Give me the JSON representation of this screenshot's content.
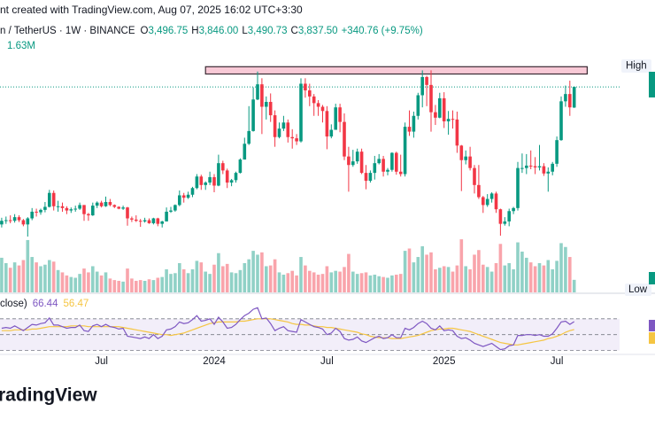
{
  "chart_data": {
    "type": "candlestick",
    "title": "nt created with TradingView.com, Aug 07, 2025 16:02 UTC+3:30",
    "symbol": "n / TetherUS · 1W · BINANCE",
    "ohlc_legend": [
      {
        "key": "O",
        "text": "3,496.75"
      },
      {
        "key": "H",
        "text": "3,846.00"
      },
      {
        "key": "L",
        "text": "3,490.73"
      },
      {
        "key": "C",
        "text": "3,837.50"
      }
    ],
    "change_text": "+340.76 (+9.75%)",
    "volume_text": "1.63M",
    "rsi_title": "close)",
    "rsi_text": "66.44",
    "rsi_ma_text": "56.47",
    "price_axis_labels": [
      "High",
      "Low"
    ],
    "brand": "radingView",
    "colors": {
      "up": "#089981",
      "down": "#f23645",
      "rsi": "#7e57c2",
      "rsi_ma": "#f5c542"
    },
    "open": [
      1570,
      1630,
      1640,
      1630,
      1690,
      1640,
      1570,
      1670,
      1780,
      1770,
      1810,
      1860,
      2090,
      1870,
      1870,
      1840,
      1800,
      1820,
      1830,
      1890,
      1740,
      1720,
      1880,
      1930,
      1870,
      1940,
      1890,
      1860,
      1830,
      1850,
      1670,
      1650,
      1630,
      1620,
      1640,
      1590,
      1670,
      1580,
      1620,
      1780,
      1800,
      1890,
      2050,
      2010,
      2060,
      2170,
      2360,
      2220,
      2260,
      2350,
      2210,
      2580,
      2460,
      2260,
      2300,
      2420,
      2640,
      2900,
      3110,
      3630,
      3880,
      3510,
      3590,
      3370,
      3010,
      3150,
      3250,
      3010,
      2990,
      2940,
      3890,
      3780,
      3680,
      3570,
      3510,
      3440,
      3020,
      3130,
      3500,
      3260,
      2690,
      2550,
      2610,
      2770,
      2420,
      2290,
      2420,
      2580,
      2650,
      2440,
      2470,
      2750,
      2440,
      2400,
      3180,
      3100,
      3360,
      3700,
      4000,
      3870,
      3420,
      3330,
      3650,
      3270,
      3310,
      3300,
      2870,
      2630,
      2690,
      2500,
      2220,
      2020,
      1890,
      1990,
      2080,
      1820,
      1580,
      1620,
      1790,
      1840,
      2500,
      2500,
      2540,
      2530,
      2510,
      2530,
      2410,
      2440,
      2570,
      2960,
      3600,
      3720,
      3496.75
    ],
    "high": [
      1680,
      1700,
      1720,
      1740,
      1720,
      1660,
      1690,
      1840,
      1830,
      1830,
      1940,
      2140,
      2130,
      1960,
      1930,
      1870,
      1850,
      1880,
      1930,
      1890,
      1760,
      1930,
      1950,
      1960,
      2030,
      1990,
      1900,
      1870,
      1880,
      1860,
      1700,
      1720,
      1660,
      1680,
      1670,
      1680,
      1680,
      1630,
      1850,
      1860,
      1900,
      2130,
      2090,
      2110,
      2190,
      2400,
      2390,
      2280,
      2440,
      2400,
      2720,
      2620,
      2490,
      2320,
      2440,
      2660,
      3000,
      3520,
      3830,
      4090,
      3980,
      3680,
      3730,
      3450,
      3250,
      3360,
      3300,
      3140,
      3060,
      3980,
      3980,
      3890,
      3720,
      3620,
      3540,
      3520,
      3220,
      3560,
      3560,
      3400,
      2850,
      2800,
      2820,
      2820,
      2550,
      2460,
      2700,
      2730,
      2700,
      2500,
      2760,
      2770,
      2720,
      3250,
      3450,
      3430,
      3740,
      4110,
      4020,
      4110,
      3540,
      3740,
      3750,
      3440,
      3450,
      3430,
      2880,
      2790,
      2850,
      2550,
      2550,
      2040,
      2070,
      2100,
      2110,
      1830,
      1690,
      1830,
      1860,
      2600,
      2740,
      2730,
      2790,
      2680,
      2880,
      2580,
      2510,
      2600,
      3020,
      3680,
      3860,
      3940,
      3846
    ],
    "low": [
      1520,
      1580,
      1590,
      1600,
      1610,
      1540,
      1370,
      1640,
      1700,
      1730,
      1770,
      1850,
      1800,
      1780,
      1780,
      1740,
      1760,
      1780,
      1810,
      1630,
      1630,
      1710,
      1840,
      1850,
      1860,
      1870,
      1840,
      1820,
      1810,
      1550,
      1610,
      1610,
      1530,
      1600,
      1580,
      1570,
      1540,
      1520,
      1620,
      1760,
      1780,
      1870,
      1930,
      1990,
      2020,
      2150,
      2140,
      2140,
      2220,
      2100,
      2200,
      2400,
      2170,
      2200,
      2260,
      2410,
      2640,
      2880,
      3100,
      3620,
      3060,
      3300,
      3260,
      2850,
      2990,
      3110,
      2920,
      2820,
      2880,
      2920,
      3660,
      3520,
      3360,
      3360,
      3250,
      2810,
      2990,
      3130,
      3090,
      2630,
      2110,
      2520,
      2570,
      2400,
      2150,
      2260,
      2310,
      2560,
      2360,
      2380,
      2440,
      2390,
      2360,
      2360,
      3030,
      3000,
      3300,
      3500,
      3520,
      3100,
      3210,
      3320,
      3160,
      3050,
      3150,
      2750,
      2120,
      2560,
      2460,
      2080,
      1990,
      1760,
      1860,
      1930,
      1760,
      1385,
      1550,
      1540,
      1740,
      1800,
      2420,
      2400,
      2480,
      2400,
      2460,
      2370,
      2110,
      2380,
      2520,
      2950,
      3510,
      3360,
      3490.73
    ],
    "close": [
      1630,
      1640,
      1630,
      1690,
      1640,
      1570,
      1670,
      1780,
      1770,
      1810,
      1860,
      2090,
      1870,
      1870,
      1840,
      1800,
      1820,
      1830,
      1890,
      1740,
      1720,
      1880,
      1930,
      1870,
      1940,
      1890,
      1860,
      1830,
      1850,
      1670,
      1650,
      1630,
      1620,
      1640,
      1590,
      1670,
      1580,
      1620,
      1780,
      1800,
      1890,
      2050,
      2010,
      2060,
      2170,
      2360,
      2220,
      2260,
      2350,
      2210,
      2580,
      2460,
      2260,
      2300,
      2420,
      2640,
      2900,
      3110,
      3630,
      3880,
      3510,
      3590,
      3370,
      3010,
      3150,
      3250,
      3010,
      2990,
      2940,
      3890,
      3780,
      3680,
      3570,
      3510,
      3440,
      3020,
      3130,
      3500,
      3260,
      2690,
      2550,
      2610,
      2770,
      2420,
      2290,
      2420,
      2580,
      2650,
      2440,
      2470,
      2750,
      2440,
      2400,
      3180,
      3100,
      3360,
      3700,
      4000,
      3870,
      3420,
      3330,
      3650,
      3270,
      3310,
      3300,
      2870,
      2630,
      2690,
      2500,
      2220,
      2020,
      1890,
      1990,
      2080,
      1820,
      1580,
      1620,
      1790,
      1840,
      2500,
      2500,
      2540,
      2530,
      2510,
      2530,
      2410,
      2440,
      2570,
      2960,
      3600,
      3720,
      3500,
      3837.5
    ],
    "volume": [
      4.5,
      3.8,
      3.2,
      3.9,
      3.5,
      4.2,
      6.8,
      4.6,
      3.9,
      3.4,
      3.6,
      4.2,
      4.0,
      2.9,
      2.6,
      2.2,
      2.0,
      1.9,
      2.4,
      3.1,
      2.6,
      3.4,
      2.7,
      2.2,
      2.6,
      1.8,
      1.6,
      1.5,
      1.4,
      3.1,
      1.8,
      1.5,
      1.6,
      1.5,
      1.7,
      1.6,
      1.9,
      2.0,
      3.0,
      2.4,
      2.5,
      3.8,
      3.0,
      2.5,
      3.0,
      4.1,
      3.9,
      2.7,
      2.4,
      3.6,
      5.1,
      3.4,
      3.7,
      2.6,
      2.5,
      2.9,
      3.8,
      4.3,
      5.4,
      4.9,
      5.2,
      3.4,
      3.5,
      4.3,
      2.6,
      2.3,
      2.5,
      2.8,
      2.2,
      4.6,
      3.5,
      2.8,
      2.6,
      2.3,
      2.4,
      3.4,
      2.6,
      2.8,
      2.7,
      3.3,
      5.0,
      2.7,
      2.4,
      2.5,
      2.6,
      2.2,
      2.3,
      2.1,
      2.0,
      1.9,
      2.2,
      2.3,
      2.4,
      5.4,
      5.7,
      3.9,
      4.6,
      6.0,
      4.9,
      5.2,
      3.0,
      3.2,
      3.4,
      3.3,
      2.7,
      3.5,
      6.9,
      3.4,
      3.0,
      4.9,
      5.5,
      3.6,
      3.3,
      2.7,
      3.8,
      6.3,
      3.5,
      3.8,
      3.0,
      6.5,
      5.3,
      4.5,
      3.9,
      3.4,
      3.8,
      3.5,
      4.2,
      3.0,
      4.1,
      6.4,
      5.9,
      4.6,
      1.63
    ],
    "rsi": [
      58,
      59,
      58,
      61,
      58,
      55,
      59,
      63,
      62,
      64,
      65,
      71,
      62,
      62,
      60,
      58,
      59,
      59,
      62,
      55,
      54,
      61,
      63,
      60,
      63,
      60,
      59,
      57,
      58,
      48,
      47,
      46,
      45,
      47,
      45,
      50,
      45,
      48,
      56,
      57,
      60,
      66,
      64,
      65,
      69,
      74,
      67,
      68,
      70,
      63,
      72,
      66,
      58,
      59,
      63,
      69,
      74,
      77,
      82,
      84,
      70,
      71,
      64,
      55,
      58,
      60,
      55,
      54,
      53,
      69,
      66,
      63,
      60,
      59,
      57,
      50,
      52,
      58,
      54,
      45,
      43,
      44,
      47,
      42,
      40,
      43,
      46,
      48,
      45,
      46,
      50,
      46,
      46,
      58,
      56,
      59,
      64,
      67,
      64,
      58,
      56,
      61,
      55,
      56,
      55,
      48,
      45,
      46,
      43,
      39,
      37,
      35,
      37,
      39,
      35,
      31,
      32,
      36,
      37,
      49,
      49,
      50,
      50,
      49,
      50,
      48,
      48,
      51,
      58,
      66,
      67,
      63,
      66.44
    ],
    "rsi_ma": [
      55,
      55,
      55,
      56,
      56,
      56,
      56,
      57,
      57,
      58,
      59,
      60,
      60,
      60,
      60,
      60,
      61,
      61,
      61,
      61,
      60,
      60,
      60,
      60,
      60,
      60,
      60,
      60,
      59,
      58,
      57,
      56,
      55,
      54,
      53,
      52,
      51,
      50,
      50,
      49,
      50,
      51,
      52,
      54,
      56,
      58,
      60,
      62,
      64,
      65,
      66,
      66,
      66,
      66,
      66,
      67,
      67,
      68,
      69,
      70,
      70,
      70,
      70,
      69,
      68,
      67,
      66,
      64,
      63,
      63,
      62,
      62,
      61,
      60,
      60,
      59,
      59,
      58,
      57,
      56,
      55,
      54,
      53,
      51,
      50,
      48,
      47,
      46,
      46,
      46,
      45,
      45,
      45,
      46,
      47,
      48,
      49,
      51,
      53,
      55,
      56,
      57,
      57,
      58,
      58,
      57,
      56,
      55,
      54,
      52,
      50,
      48,
      46,
      44,
      42,
      40,
      39,
      38,
      37,
      37,
      38,
      39,
      40,
      41,
      42,
      43,
      45,
      46,
      48,
      50,
      53,
      55,
      56.47
    ],
    "ylim": [
      450,
      5270
    ],
    "volume_ylim": [
      0,
      38
    ],
    "rsi_ylim": [
      25,
      100
    ],
    "rsi_levels": [
      70,
      50,
      30
    ],
    "xticks": [
      {
        "value": 23,
        "label": "Jul"
      },
      {
        "value": 49,
        "label": "2024"
      },
      {
        "value": 75,
        "label": "Jul"
      },
      {
        "value": 102,
        "label": "2025"
      },
      {
        "value": 128,
        "label": "Jul"
      }
    ],
    "zone": {
      "low": 4050,
      "high": 4170,
      "from": 47,
      "to": 135
    }
  }
}
